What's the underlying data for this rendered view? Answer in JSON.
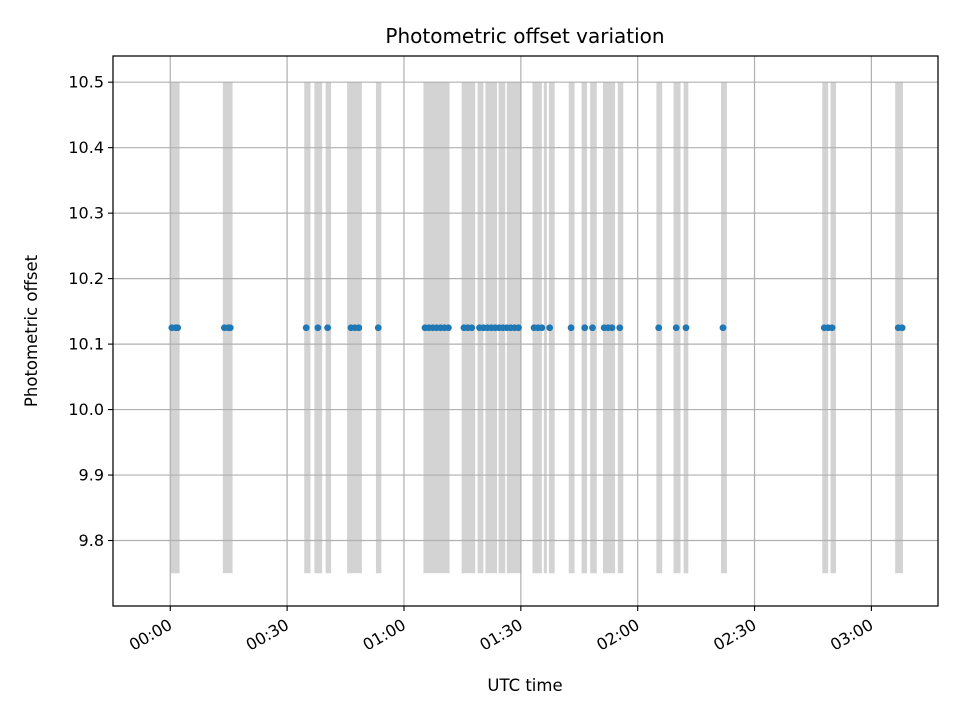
{
  "chart_data": {
    "type": "scatter",
    "title": "Photometric offset variation",
    "xlabel": "UTC time",
    "ylabel": "Photometric offset",
    "x_unit": "minutes",
    "xlim": [
      -14.7,
      197.1
    ],
    "ylim": [
      9.7,
      10.54
    ],
    "x_ticks": [
      {
        "value": 0,
        "label": "00:00"
      },
      {
        "value": 30,
        "label": "00:30"
      },
      {
        "value": 60,
        "label": "01:00"
      },
      {
        "value": 90,
        "label": "01:30"
      },
      {
        "value": 120,
        "label": "02:00"
      },
      {
        "value": 150,
        "label": "02:30"
      },
      {
        "value": 180,
        "label": "03:00"
      }
    ],
    "y_ticks": [
      {
        "value": 9.8,
        "label": "9.8"
      },
      {
        "value": 9.9,
        "label": "9.9"
      },
      {
        "value": 10.0,
        "label": "10.0"
      },
      {
        "value": 10.1,
        "label": "10.1"
      },
      {
        "value": 10.2,
        "label": "10.2"
      },
      {
        "value": 10.3,
        "label": "10.3"
      },
      {
        "value": 10.4,
        "label": "10.4"
      },
      {
        "value": 10.5,
        "label": "10.5"
      }
    ],
    "grid": true,
    "series": [
      {
        "color": "#1f77b4",
        "y_value": 10.125,
        "x": [
          0.4,
          1.4,
          1.9,
          13.9,
          14.9,
          15.4,
          34.9,
          37.9,
          40.4,
          46.4,
          47.4,
          48.4,
          53.4,
          65.4,
          66.4,
          67.4,
          68.4,
          69.4,
          70.4,
          71.4,
          75.4,
          76.4,
          77.4,
          79.4,
          80.4,
          81.4,
          82.4,
          83.4,
          84.4,
          85.4,
          86.4,
          87.4,
          88.4,
          89.4,
          93.4,
          94.4,
          95.4,
          97.4,
          102.9,
          106.4,
          108.4,
          111.4,
          112.4,
          113.4,
          115.4,
          125.4,
          129.9,
          132.4,
          141.9,
          167.9,
          168.9,
          169.9,
          186.9,
          187.9
        ]
      }
    ],
    "shaded_bands": {
      "color": "#d3d3d3",
      "y_range": [
        9.75,
        10.5
      ],
      "x_ranges": [
        [
          0,
          2.4
        ],
        [
          13.5,
          16
        ],
        [
          34.4,
          36
        ],
        [
          37,
          39
        ],
        [
          39.9,
          41.3
        ],
        [
          45.4,
          49.2
        ],
        [
          52.8,
          54.2
        ],
        [
          65,
          71.7
        ],
        [
          74.8,
          78.3
        ],
        [
          78.9,
          80.4
        ],
        [
          80.9,
          83.9
        ],
        [
          84.3,
          86
        ],
        [
          86.4,
          90.2
        ],
        [
          93,
          95.4
        ],
        [
          95.9,
          96.7
        ],
        [
          97.2,
          98.7
        ],
        [
          102.3,
          103.8
        ],
        [
          105.6,
          107
        ],
        [
          107.8,
          109.5
        ],
        [
          111.1,
          114.2
        ],
        [
          114.9,
          116.3
        ],
        [
          124.8,
          126.3
        ],
        [
          129.2,
          131
        ],
        [
          131.8,
          133
        ],
        [
          141.4,
          142.9
        ],
        [
          167.4,
          168.9
        ],
        [
          169.5,
          170.9
        ],
        [
          186.1,
          188.1
        ]
      ]
    }
  }
}
